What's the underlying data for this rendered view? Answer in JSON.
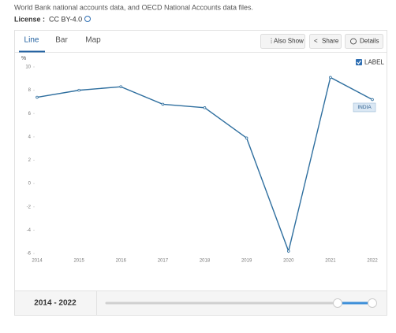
{
  "source_note": "World Bank national accounts data, and OECD National Accounts data files.",
  "license_label": "License :",
  "license_value": "CC BY-4.0",
  "tabs": [
    "Line",
    "Bar",
    "Map"
  ],
  "buttons": [
    "Also Show",
    "Share",
    "Details"
  ],
  "label_toggle": "LABEL",
  "range_label": "2014 - 2022",
  "chart_data": {
    "type": "line",
    "y_label": "%",
    "categories": [
      "2014",
      "2015",
      "2016",
      "2017",
      "2018",
      "2019",
      "2020",
      "2021",
      "2022"
    ],
    "series": [
      {
        "name": "INDIA",
        "color": "#2f6f9f",
        "values": [
          7.4,
          8.0,
          8.3,
          6.8,
          6.5,
          3.9,
          -5.8,
          9.1,
          7.2
        ]
      }
    ],
    "ylim": [
      -6,
      10
    ],
    "yticks": [
      -6,
      -4,
      -2,
      0,
      2,
      4,
      6,
      8,
      10
    ],
    "grid": false
  }
}
